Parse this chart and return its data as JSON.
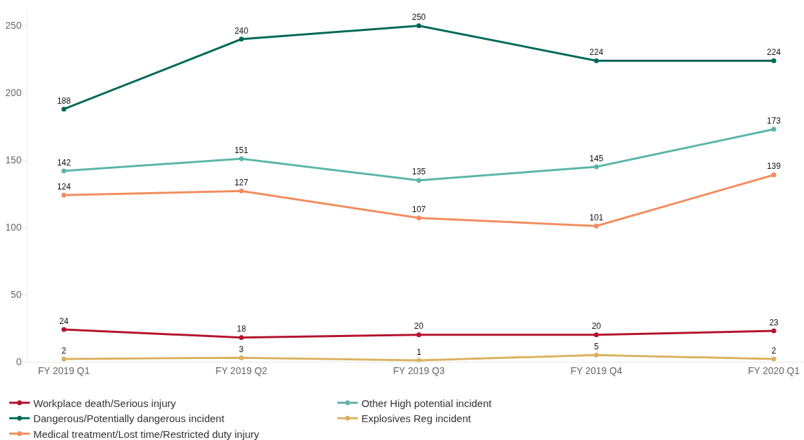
{
  "chart_data": {
    "type": "line",
    "categories": [
      "FY 2019 Q1",
      "FY 2019 Q2",
      "FY 2019 Q3",
      "FY 2019 Q4",
      "FY 2020 Q1"
    ],
    "series": [
      {
        "name": "Workplace death/Serious injury",
        "color": "#b5122c",
        "values": [
          24,
          18,
          20,
          20,
          23
        ]
      },
      {
        "name": "Other High potential incident",
        "color": "#5bb5a9",
        "values": [
          142,
          151,
          135,
          145,
          173
        ]
      },
      {
        "name": "Dangerous/Potentially dangerous incident",
        "color": "#006858",
        "values": [
          188,
          240,
          250,
          224,
          224
        ]
      },
      {
        "name": "Explosives Reg incident",
        "color": "#dbb160",
        "values": [
          2,
          3,
          1,
          5,
          2
        ]
      },
      {
        "name": "Medical treatment/Lost time/Restricted duty injury",
        "color": "#f28c5e",
        "values": [
          124,
          127,
          107,
          101,
          139
        ]
      }
    ],
    "ylim": [
      0,
      262
    ],
    "yticks": [
      0,
      50,
      100,
      150,
      200,
      250
    ],
    "grid": false,
    "legend": "bottom",
    "marker": "circle",
    "line_style": "solid",
    "data_labels": true
  }
}
